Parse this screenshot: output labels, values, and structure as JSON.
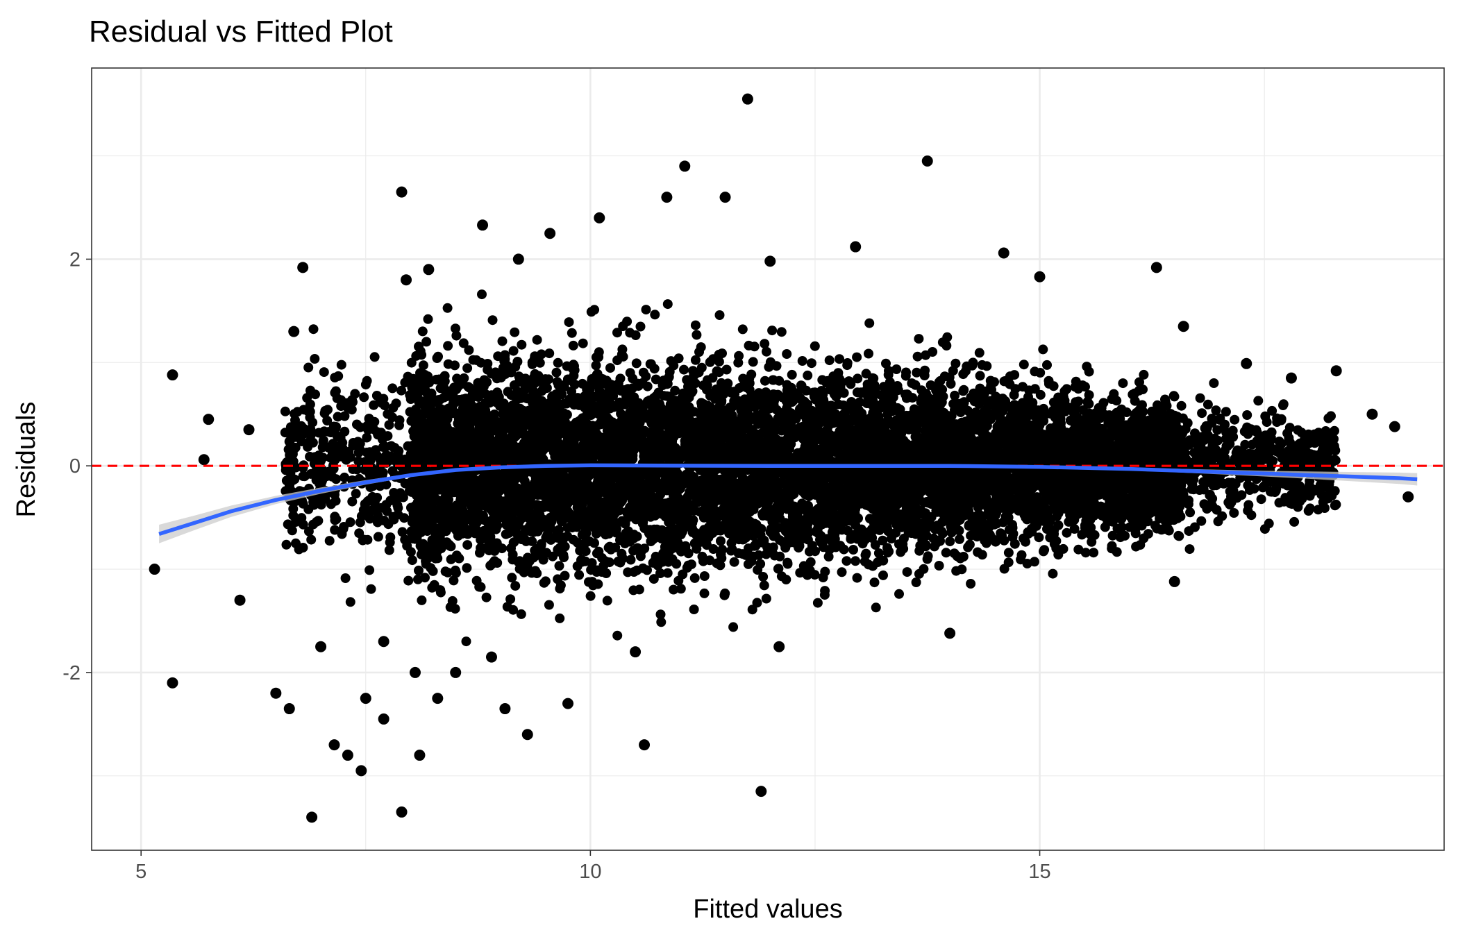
{
  "chart_data": {
    "type": "scatter",
    "title": "Residual vs Fitted Plot",
    "xlabel": "Fitted values",
    "ylabel": "Residuals",
    "xlim": [
      4.45,
      19.5
    ],
    "ylim": [
      -3.72,
      3.85
    ],
    "x_ticks": [
      5,
      10,
      15
    ],
    "x_tick_labels": [
      "5",
      "10",
      "15"
    ],
    "y_ticks": [
      -2,
      0,
      2
    ],
    "y_tick_labels": [
      "-2",
      "0",
      "2"
    ],
    "grid": true,
    "legend": "none",
    "colors": {
      "points": "#000000",
      "smooth_line": "#3366ff",
      "confidence_band": "#cccccc",
      "reference_line": "#ff0000",
      "grid": "#ebebeb"
    },
    "reference_line": {
      "y": 0,
      "style": "dashed"
    },
    "dense_cloud": {
      "description_x_range": [
        6.6,
        18.2
      ],
      "center_y": 0,
      "spread_sd": [
        [
          6.6,
          0.35
        ],
        [
          8.5,
          0.5
        ],
        [
          11,
          0.5
        ],
        [
          13.5,
          0.42
        ],
        [
          16,
          0.3
        ],
        [
          18,
          0.22
        ]
      ]
    },
    "outliers": [
      [
        5.15,
        -1.0
      ],
      [
        5.35,
        0.88
      ],
      [
        5.35,
        -2.1
      ],
      [
        5.7,
        0.06
      ],
      [
        5.75,
        0.45
      ],
      [
        6.1,
        -1.3
      ],
      [
        6.2,
        0.35
      ],
      [
        6.5,
        -2.2
      ],
      [
        6.65,
        -2.35
      ],
      [
        6.7,
        1.3
      ],
      [
        6.8,
        1.92
      ],
      [
        6.9,
        -3.4
      ],
      [
        7.0,
        -1.75
      ],
      [
        7.15,
        -2.7
      ],
      [
        7.3,
        -2.8
      ],
      [
        7.45,
        -2.95
      ],
      [
        7.5,
        -2.25
      ],
      [
        7.7,
        -1.7
      ],
      [
        7.7,
        -2.45
      ],
      [
        7.9,
        2.65
      ],
      [
        7.9,
        -3.35
      ],
      [
        7.95,
        1.8
      ],
      [
        8.05,
        -2.0
      ],
      [
        8.1,
        -2.8
      ],
      [
        8.2,
        1.9
      ],
      [
        8.3,
        -2.25
      ],
      [
        8.5,
        -2.0
      ],
      [
        8.8,
        2.33
      ],
      [
        8.9,
        -1.85
      ],
      [
        9.05,
        -2.35
      ],
      [
        9.2,
        2.0
      ],
      [
        9.3,
        -2.6
      ],
      [
        9.55,
        2.25
      ],
      [
        9.75,
        -2.3
      ],
      [
        10.1,
        2.4
      ],
      [
        10.5,
        -1.8
      ],
      [
        10.6,
        -2.7
      ],
      [
        10.85,
        2.6
      ],
      [
        11.05,
        2.9
      ],
      [
        11.5,
        2.6
      ],
      [
        11.75,
        3.55
      ],
      [
        11.9,
        -3.15
      ],
      [
        12.0,
        1.98
      ],
      [
        12.1,
        -1.75
      ],
      [
        12.95,
        2.12
      ],
      [
        13.75,
        2.95
      ],
      [
        14.0,
        -1.62
      ],
      [
        14.6,
        2.06
      ],
      [
        15.0,
        1.83
      ],
      [
        16.3,
        1.92
      ],
      [
        16.5,
        -1.12
      ],
      [
        16.6,
        1.35
      ],
      [
        17.3,
        0.99
      ],
      [
        17.8,
        0.85
      ],
      [
        18.3,
        0.92
      ],
      [
        18.7,
        0.5
      ],
      [
        18.95,
        0.38
      ],
      [
        19.1,
        -0.3
      ]
    ],
    "smooth": {
      "method": "loess",
      "x": [
        5.2,
        5.6,
        6.0,
        6.5,
        7.0,
        7.5,
        8.0,
        8.5,
        9.0,
        9.5,
        10.0,
        11.0,
        12.0,
        13.0,
        14.0,
        15.0,
        16.0,
        16.5,
        17.0,
        17.5,
        18.0,
        18.5,
        19.0,
        19.2
      ],
      "y": [
        -0.66,
        -0.55,
        -0.44,
        -0.33,
        -0.24,
        -0.16,
        -0.09,
        -0.04,
        -0.015,
        0.0,
        0.005,
        0.002,
        0.0,
        0.0,
        0.0,
        -0.01,
        -0.03,
        -0.045,
        -0.06,
        -0.075,
        -0.09,
        -0.105,
        -0.12,
        -0.13
      ],
      "se": [
        0.09,
        0.07,
        0.055,
        0.04,
        0.03,
        0.022,
        0.016,
        0.013,
        0.011,
        0.01,
        0.009,
        0.008,
        0.008,
        0.008,
        0.009,
        0.01,
        0.014,
        0.017,
        0.022,
        0.028,
        0.036,
        0.045,
        0.055,
        0.06
      ]
    }
  }
}
